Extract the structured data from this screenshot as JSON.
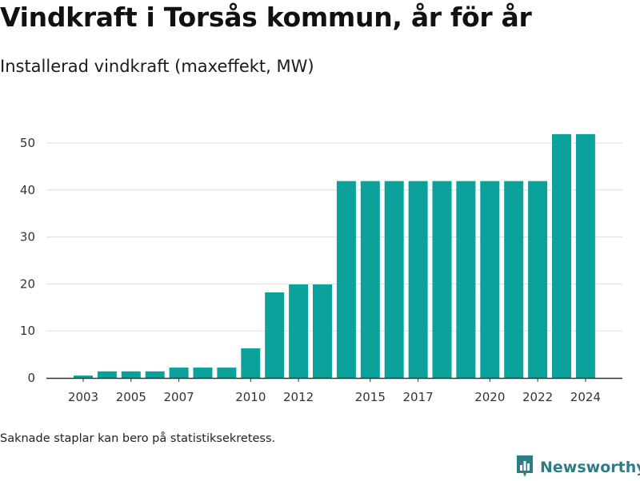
{
  "header": {
    "title": "Vindkraft i Torsås kommun, år för år",
    "subtitle": "Installerad vindkraft (maxeffekt, MW)"
  },
  "footer": {
    "note": "Saknade staplar kan bero på statistiksekretess.",
    "brand": "Newsworthy"
  },
  "colors": {
    "bar": "#0aa29a",
    "grid": "#dddddd",
    "axis": "#333333",
    "brand": "#2c7d84"
  },
  "chart_data": {
    "type": "bar",
    "title": "Vindkraft i Torsås kommun, år för år",
    "subtitle": "Installerad vindkraft (maxeffekt, MW)",
    "xlabel": "",
    "ylabel": "",
    "categories": [
      2003,
      2004,
      2005,
      2006,
      2007,
      2008,
      2009,
      2010,
      2011,
      2012,
      2013,
      2014,
      2015,
      2016,
      2017,
      2018,
      2019,
      2020,
      2021,
      2022,
      2023,
      2024
    ],
    "values": [
      0.5,
      1.4,
      1.4,
      1.4,
      2.2,
      2.2,
      2.2,
      6.3,
      18.2,
      19.9,
      19.9,
      41.9,
      41.9,
      41.9,
      41.9,
      41.9,
      41.9,
      41.9,
      41.9,
      41.9,
      51.9,
      51.9
    ],
    "x_tick_labels": [
      "2003",
      "2005",
      "2007",
      "2010",
      "2012",
      "2015",
      "2017",
      "2020",
      "2022",
      "2024"
    ],
    "y_ticks": [
      0,
      10,
      20,
      30,
      40,
      50
    ],
    "ylim": [
      0,
      55
    ],
    "grid": true,
    "legend": "none"
  }
}
